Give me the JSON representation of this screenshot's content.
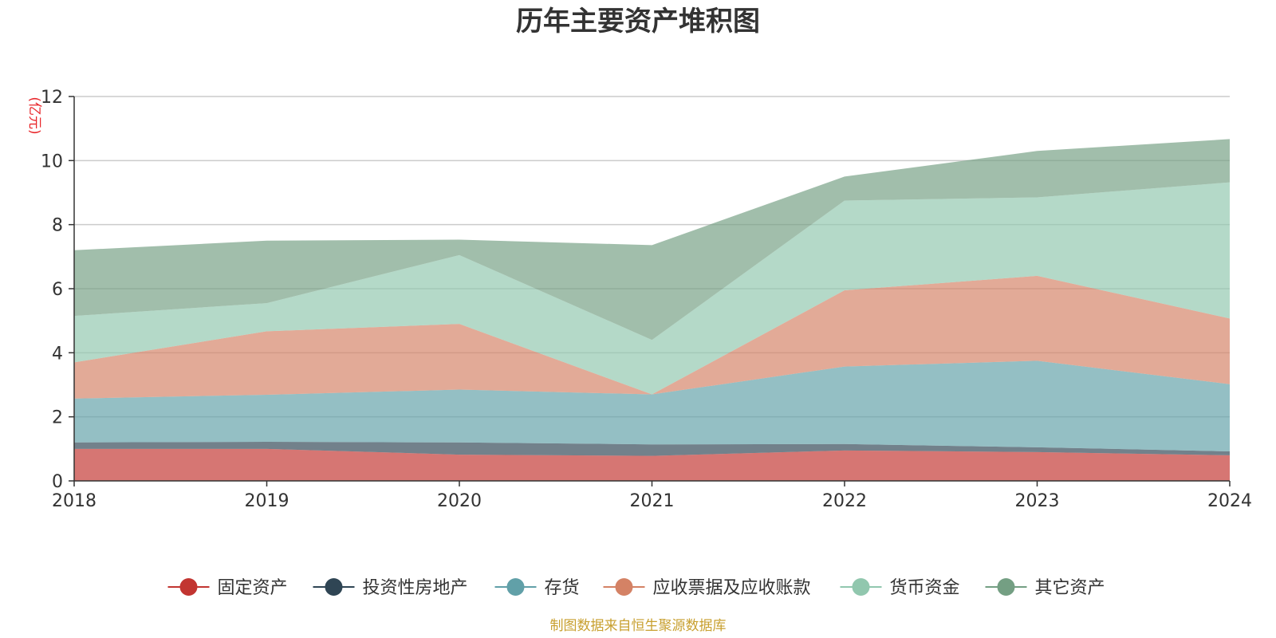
{
  "chart_data": {
    "type": "area",
    "stacked": true,
    "title": "历年主要资产堆积图",
    "unit_label": "(亿元)",
    "source_note": "制图数据来自恒生聚源数据库",
    "x": [
      "2018",
      "2019",
      "2020",
      "2021",
      "2022",
      "2023",
      "2024"
    ],
    "ylim": [
      0,
      12
    ],
    "yticks": [
      0,
      2,
      4,
      6,
      8,
      10,
      12
    ],
    "grid": true,
    "legend_position": "bottom",
    "series": [
      {
        "name": "固定资产",
        "color": "#c23531",
        "values": [
          1.0,
          1.0,
          0.82,
          0.78,
          0.95,
          0.9,
          0.8
        ]
      },
      {
        "name": "投资性房地产",
        "color": "#2f4554",
        "values": [
          0.2,
          0.22,
          0.38,
          0.36,
          0.2,
          0.15,
          0.12
        ]
      },
      {
        "name": "存货",
        "color": "#61a0a8",
        "values": [
          1.37,
          1.47,
          1.65,
          1.56,
          2.42,
          2.7,
          2.1
        ]
      },
      {
        "name": "应收票据及应收账款",
        "color": "#d48265",
        "values": [
          1.13,
          1.98,
          2.05,
          0.0,
          2.38,
          2.65,
          2.05
        ]
      },
      {
        "name": "货币资金",
        "color": "#91c7ae",
        "values": [
          1.45,
          0.88,
          2.15,
          1.7,
          2.8,
          2.45,
          4.25
        ]
      },
      {
        "name": "其它资产",
        "color": "#749f83",
        "values": [
          2.05,
          1.95,
          0.48,
          2.96,
          0.75,
          1.45,
          1.35
        ]
      }
    ]
  }
}
